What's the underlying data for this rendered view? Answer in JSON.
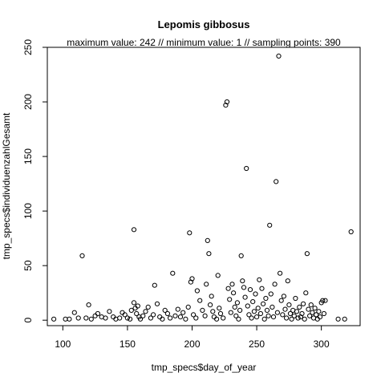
{
  "chart_data": {
    "type": "scatter",
    "title": "Lepomis gibbosus",
    "subtitle": "maximum value: 242  //  minimum value: 1  // sampling points: 390",
    "xlabel": "tmp_specs$day_of_year",
    "ylabel": "tmp_specs$individuenzahlGesamt",
    "xlim": [
      88,
      330
    ],
    "ylim": [
      -5,
      250
    ],
    "x_ticks": [
      100,
      150,
      200,
      250,
      300
    ],
    "y_ticks": [
      0,
      50,
      100,
      150,
      200,
      250
    ],
    "grid": false,
    "legend": "none",
    "marker": "open-circle",
    "points": [
      {
        "x": 93,
        "y": 1
      },
      {
        "x": 102,
        "y": 1
      },
      {
        "x": 105,
        "y": 1
      },
      {
        "x": 109,
        "y": 7
      },
      {
        "x": 112,
        "y": 2
      },
      {
        "x": 115,
        "y": 59
      },
      {
        "x": 118,
        "y": 2
      },
      {
        "x": 120,
        "y": 14
      },
      {
        "x": 122,
        "y": 1
      },
      {
        "x": 125,
        "y": 4
      },
      {
        "x": 127,
        "y": 6
      },
      {
        "x": 130,
        "y": 3
      },
      {
        "x": 133,
        "y": 2
      },
      {
        "x": 136,
        "y": 8
      },
      {
        "x": 139,
        "y": 3
      },
      {
        "x": 141,
        "y": 1
      },
      {
        "x": 144,
        "y": 2
      },
      {
        "x": 146,
        "y": 7
      },
      {
        "x": 148,
        "y": 5
      },
      {
        "x": 150,
        "y": 2
      },
      {
        "x": 152,
        "y": 1
      },
      {
        "x": 153,
        "y": 9
      },
      {
        "x": 155,
        "y": 83
      },
      {
        "x": 155,
        "y": 16
      },
      {
        "x": 156,
        "y": 11
      },
      {
        "x": 157,
        "y": 6
      },
      {
        "x": 158,
        "y": 13
      },
      {
        "x": 159,
        "y": 3
      },
      {
        "x": 160,
        "y": 1
      },
      {
        "x": 162,
        "y": 4
      },
      {
        "x": 164,
        "y": 8
      },
      {
        "x": 166,
        "y": 12
      },
      {
        "x": 168,
        "y": 2
      },
      {
        "x": 170,
        "y": 5
      },
      {
        "x": 171,
        "y": 32
      },
      {
        "x": 173,
        "y": 15
      },
      {
        "x": 175,
        "y": 3
      },
      {
        "x": 177,
        "y": 1
      },
      {
        "x": 179,
        "y": 9
      },
      {
        "x": 181,
        "y": 6
      },
      {
        "x": 183,
        "y": 2
      },
      {
        "x": 185,
        "y": 43
      },
      {
        "x": 187,
        "y": 4
      },
      {
        "x": 189,
        "y": 10
      },
      {
        "x": 191,
        "y": 3
      },
      {
        "x": 193,
        "y": 7
      },
      {
        "x": 195,
        "y": 1
      },
      {
        "x": 197,
        "y": 12
      },
      {
        "x": 198,
        "y": 80
      },
      {
        "x": 199,
        "y": 35
      },
      {
        "x": 200,
        "y": 38
      },
      {
        "x": 201,
        "y": 5
      },
      {
        "x": 203,
        "y": 2
      },
      {
        "x": 204,
        "y": 27
      },
      {
        "x": 206,
        "y": 18
      },
      {
        "x": 208,
        "y": 9
      },
      {
        "x": 210,
        "y": 4
      },
      {
        "x": 211,
        "y": 33
      },
      {
        "x": 212,
        "y": 73
      },
      {
        "x": 213,
        "y": 61
      },
      {
        "x": 214,
        "y": 14
      },
      {
        "x": 215,
        "y": 22
      },
      {
        "x": 216,
        "y": 8
      },
      {
        "x": 217,
        "y": 3
      },
      {
        "x": 219,
        "y": 1
      },
      {
        "x": 220,
        "y": 41
      },
      {
        "x": 221,
        "y": 11
      },
      {
        "x": 222,
        "y": 6
      },
      {
        "x": 224,
        "y": 2
      },
      {
        "x": 226,
        "y": 197
      },
      {
        "x": 227,
        "y": 200
      },
      {
        "x": 228,
        "y": 29
      },
      {
        "x": 229,
        "y": 19
      },
      {
        "x": 230,
        "y": 7
      },
      {
        "x": 231,
        "y": 33
      },
      {
        "x": 232,
        "y": 25
      },
      {
        "x": 233,
        "y": 12
      },
      {
        "x": 234,
        "y": 4
      },
      {
        "x": 235,
        "y": 16
      },
      {
        "x": 236,
        "y": 1
      },
      {
        "x": 237,
        "y": 9
      },
      {
        "x": 238,
        "y": 59
      },
      {
        "x": 239,
        "y": 36
      },
      {
        "x": 240,
        "y": 30
      },
      {
        "x": 241,
        "y": 21
      },
      {
        "x": 242,
        "y": 139
      },
      {
        "x": 243,
        "y": 13
      },
      {
        "x": 244,
        "y": 5
      },
      {
        "x": 245,
        "y": 28
      },
      {
        "x": 246,
        "y": 2
      },
      {
        "x": 247,
        "y": 17
      },
      {
        "x": 248,
        "y": 8
      },
      {
        "x": 249,
        "y": 24
      },
      {
        "x": 250,
        "y": 3
      },
      {
        "x": 251,
        "y": 11
      },
      {
        "x": 252,
        "y": 37
      },
      {
        "x": 253,
        "y": 6
      },
      {
        "x": 254,
        "y": 29
      },
      {
        "x": 255,
        "y": 15
      },
      {
        "x": 256,
        "y": 1
      },
      {
        "x": 257,
        "y": 20
      },
      {
        "x": 258,
        "y": 9
      },
      {
        "x": 259,
        "y": 4
      },
      {
        "x": 260,
        "y": 87
      },
      {
        "x": 261,
        "y": 24
      },
      {
        "x": 262,
        "y": 12
      },
      {
        "x": 263,
        "y": 3
      },
      {
        "x": 264,
        "y": 33
      },
      {
        "x": 265,
        "y": 127
      },
      {
        "x": 266,
        "y": 7
      },
      {
        "x": 267,
        "y": 242
      },
      {
        "x": 268,
        "y": 43
      },
      {
        "x": 269,
        "y": 18
      },
      {
        "x": 270,
        "y": 5
      },
      {
        "x": 271,
        "y": 22
      },
      {
        "x": 272,
        "y": 10
      },
      {
        "x": 273,
        "y": 2
      },
      {
        "x": 274,
        "y": 36
      },
      {
        "x": 275,
        "y": 14
      },
      {
        "x": 276,
        "y": 6
      },
      {
        "x": 277,
        "y": 1
      },
      {
        "x": 278,
        "y": 9
      },
      {
        "x": 279,
        "y": 4
      },
      {
        "x": 280,
        "y": 20
      },
      {
        "x": 281,
        "y": 8
      },
      {
        "x": 282,
        "y": 2
      },
      {
        "x": 283,
        "y": 12
      },
      {
        "x": 284,
        "y": 3
      },
      {
        "x": 285,
        "y": 6
      },
      {
        "x": 286,
        "y": 15
      },
      {
        "x": 287,
        "y": 1
      },
      {
        "x": 288,
        "y": 25
      },
      {
        "x": 289,
        "y": 61
      },
      {
        "x": 290,
        "y": 10
      },
      {
        "x": 291,
        "y": 4
      },
      {
        "x": 292,
        "y": 14
      },
      {
        "x": 293,
        "y": 7
      },
      {
        "x": 294,
        "y": 2
      },
      {
        "x": 295,
        "y": 11
      },
      {
        "x": 296,
        "y": 5
      },
      {
        "x": 297,
        "y": 1
      },
      {
        "x": 298,
        "y": 8
      },
      {
        "x": 299,
        "y": 3
      },
      {
        "x": 300,
        "y": 16
      },
      {
        "x": 301,
        "y": 18
      },
      {
        "x": 302,
        "y": 6
      },
      {
        "x": 303,
        "y": 18
      },
      {
        "x": 313,
        "y": 1
      },
      {
        "x": 318,
        "y": 1
      },
      {
        "x": 323,
        "y": 81
      }
    ]
  }
}
